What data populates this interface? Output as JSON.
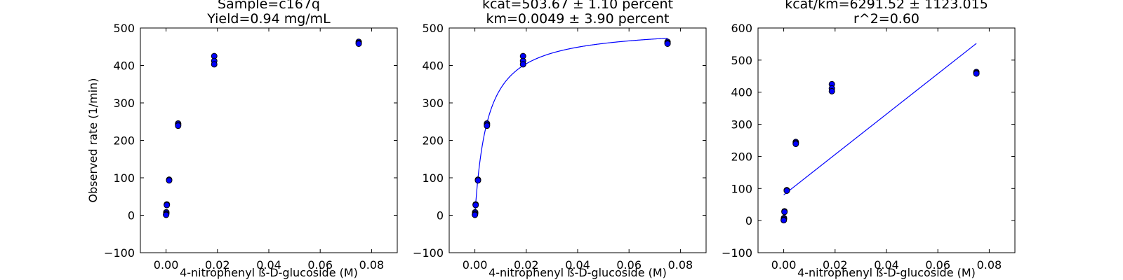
{
  "chart_data": [
    {
      "type": "scatter",
      "title_lines": [
        "Sample=c167q",
        "Yield=0.94 mg/mL"
      ],
      "xlabel": "4-nitrophenyl ß-D-glucoside (M)",
      "ylabel": "Observed rate (1/min)",
      "xlim": [
        -0.01,
        0.09
      ],
      "ylim": [
        -100,
        500
      ],
      "xticks": [
        0.0,
        0.02,
        0.04,
        0.06,
        0.08
      ],
      "xtick_labels": [
        "0.00",
        "0.02",
        "0.04",
        "0.06",
        "0.08"
      ],
      "yticks": [
        -100,
        0,
        100,
        200,
        300,
        400,
        500
      ],
      "ytick_labels": [
        "−100",
        "0",
        "100",
        "200",
        "300",
        "400",
        "500"
      ],
      "grid": false,
      "series": [
        {
          "color": "#0000ff",
          "x": [
            0.075,
            0.075,
            0.075,
            0.01875,
            0.01875,
            0.01875,
            0.0047,
            0.0047,
            0.0047,
            0.0012,
            0.0012,
            0.0003,
            0.0003,
            0.0001,
            0.0001,
            2e-05,
            2e-05
          ],
          "y": [
            463,
            460,
            458,
            425,
            412,
            403,
            245,
            242,
            239,
            95,
            93,
            29,
            27,
            8,
            5,
            2,
            1
          ]
        }
      ],
      "curves": []
    },
    {
      "type": "scatter",
      "title_lines": [
        "kcat=503.67 ± 1.10 percent",
        "km=0.0049 ± 3.90 percent"
      ],
      "xlabel": "4-nitrophenyl ß-D-glucoside (M)",
      "ylabel": "",
      "xlim": [
        -0.01,
        0.09
      ],
      "ylim": [
        -100,
        500
      ],
      "xticks": [
        0.0,
        0.02,
        0.04,
        0.06,
        0.08
      ],
      "xtick_labels": [
        "0.00",
        "0.02",
        "0.04",
        "0.06",
        "0.08"
      ],
      "yticks": [
        -100,
        0,
        100,
        200,
        300,
        400,
        500
      ],
      "ytick_labels": [
        "−100",
        "0",
        "100",
        "200",
        "300",
        "400",
        "500"
      ],
      "grid": false,
      "series": [
        {
          "color": "#0000ff",
          "x": [
            0.075,
            0.075,
            0.075,
            0.01875,
            0.01875,
            0.01875,
            0.0047,
            0.0047,
            0.0047,
            0.0012,
            0.0012,
            0.0003,
            0.0003,
            0.0001,
            0.0001,
            2e-05,
            2e-05
          ],
          "y": [
            463,
            460,
            458,
            425,
            412,
            403,
            245,
            242,
            239,
            95,
            93,
            29,
            27,
            8,
            5,
            2,
            1
          ]
        }
      ],
      "curves": [
        {
          "kind": "michaelis-menten",
          "color": "#0000ff",
          "vmax": 503.67,
          "km": 0.0049,
          "x_range": [
            0.0,
            0.075
          ]
        }
      ]
    },
    {
      "type": "scatter",
      "title_lines": [
        "kcat/km=6291.52 ± 1123.015",
        "r^2=0.60"
      ],
      "xlabel": "4-nitrophenyl ß-D-glucoside (M)",
      "ylabel": "",
      "xlim": [
        -0.01,
        0.09
      ],
      "ylim": [
        -100,
        600
      ],
      "xticks": [
        0.0,
        0.02,
        0.04,
        0.06,
        0.08
      ],
      "xtick_labels": [
        "0.00",
        "0.02",
        "0.04",
        "0.06",
        "0.08"
      ],
      "yticks": [
        -100,
        0,
        100,
        200,
        300,
        400,
        500,
        600
      ],
      "ytick_labels": [
        "−100",
        "0",
        "100",
        "200",
        "300",
        "400",
        "500",
        "600"
      ],
      "grid": false,
      "series": [
        {
          "color": "#0000ff",
          "x": [
            0.075,
            0.075,
            0.075,
            0.01875,
            0.01875,
            0.01875,
            0.0047,
            0.0047,
            0.0047,
            0.0012,
            0.0012,
            0.0003,
            0.0003,
            0.0001,
            0.0001,
            2e-05,
            2e-05
          ],
          "y": [
            463,
            460,
            458,
            425,
            412,
            403,
            245,
            242,
            239,
            95,
            93,
            29,
            27,
            8,
            5,
            2,
            1
          ]
        }
      ],
      "curves": [
        {
          "kind": "linear",
          "color": "#0000ff",
          "slope": 6291.52,
          "intercept": 80,
          "x_range": [
            0.0,
            0.075
          ]
        }
      ]
    }
  ]
}
